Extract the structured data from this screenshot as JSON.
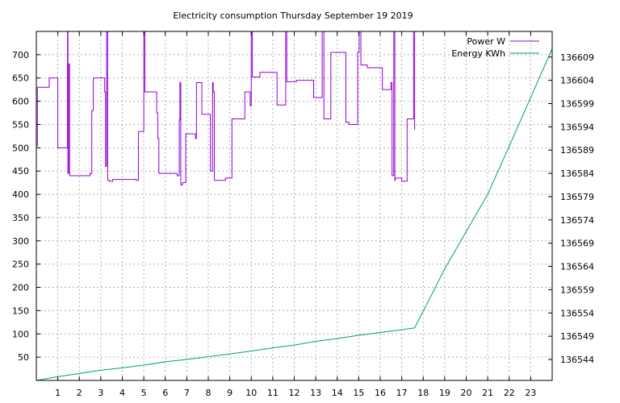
{
  "chart_data": {
    "type": "line",
    "title": "Electricity consumption Thursday September 19 2019",
    "grid": true,
    "legend_position": "top-right",
    "x": {
      "range": [
        0,
        24
      ],
      "ticks": [
        1,
        2,
        3,
        4,
        5,
        6,
        7,
        8,
        9,
        10,
        11,
        12,
        13,
        14,
        15,
        16,
        17,
        18,
        19,
        20,
        21,
        22,
        23
      ]
    },
    "y_left": {
      "range": [
        0,
        750
      ],
      "ticks": [
        50,
        100,
        150,
        200,
        250,
        300,
        350,
        400,
        450,
        500,
        550,
        600,
        650,
        700
      ]
    },
    "y_right": {
      "range": [
        136539.5,
        136614.5
      ],
      "ticks": [
        136544,
        136549,
        136554,
        136559,
        136564,
        136569,
        136574,
        136579,
        136584,
        136589,
        136594,
        136599,
        136604,
        136609
      ]
    },
    "series": [
      {
        "name": "Power W",
        "color": "#9400d3",
        "axis": "left",
        "step": true,
        "points": [
          [
            0,
            505
          ],
          [
            0.05,
            630
          ],
          [
            0.6,
            650
          ],
          [
            1.0,
            500
          ],
          [
            1.45,
            760
          ],
          [
            1.47,
            445
          ],
          [
            1.5,
            680
          ],
          [
            1.55,
            440
          ],
          [
            2.5,
            445
          ],
          [
            2.58,
            580
          ],
          [
            2.65,
            650
          ],
          [
            3.18,
            620
          ],
          [
            3.22,
            460
          ],
          [
            3.27,
            760
          ],
          [
            3.32,
            430
          ],
          [
            3.4,
            428
          ],
          [
            3.55,
            432
          ],
          [
            4.65,
            430
          ],
          [
            4.75,
            535
          ],
          [
            5.0,
            760
          ],
          [
            5.05,
            620
          ],
          [
            5.6,
            575
          ],
          [
            5.65,
            520
          ],
          [
            5.7,
            445
          ],
          [
            6.55,
            440
          ],
          [
            6.65,
            560
          ],
          [
            6.68,
            640
          ],
          [
            6.72,
            420
          ],
          [
            6.8,
            425
          ],
          [
            6.95,
            530
          ],
          [
            7.4,
            520
          ],
          [
            7.45,
            640
          ],
          [
            7.7,
            572
          ],
          [
            8.1,
            450
          ],
          [
            8.2,
            640
          ],
          [
            8.23,
            620
          ],
          [
            8.28,
            430
          ],
          [
            8.8,
            435
          ],
          [
            9.1,
            562
          ],
          [
            9.7,
            620
          ],
          [
            9.95,
            590
          ],
          [
            10.0,
            760
          ],
          [
            10.05,
            652
          ],
          [
            10.4,
            662
          ],
          [
            11.2,
            592
          ],
          [
            11.6,
            760
          ],
          [
            11.65,
            642
          ],
          [
            12.1,
            645
          ],
          [
            12.9,
            608
          ],
          [
            13.3,
            760
          ],
          [
            13.38,
            562
          ],
          [
            13.7,
            705
          ],
          [
            14.4,
            555
          ],
          [
            14.55,
            550
          ],
          [
            14.95,
            705
          ],
          [
            15.02,
            760
          ],
          [
            15.1,
            678
          ],
          [
            15.4,
            672
          ],
          [
            16.1,
            625
          ],
          [
            16.5,
            640
          ],
          [
            16.55,
            440
          ],
          [
            16.63,
            760
          ],
          [
            16.68,
            430
          ],
          [
            16.7,
            435
          ],
          [
            17.0,
            428
          ],
          [
            17.25,
            562
          ],
          [
            17.55,
            760
          ],
          [
            17.6,
            540
          ]
        ]
      },
      {
        "name": "Energy KWh",
        "color": "#009e73",
        "axis": "right",
        "step": false,
        "points": [
          [
            0,
            136539.5
          ],
          [
            1,
            136540.3
          ],
          [
            2,
            136541.0
          ],
          [
            3,
            136541.7
          ],
          [
            4,
            136542.2
          ],
          [
            5,
            136542.8
          ],
          [
            6,
            136543.5
          ],
          [
            7,
            136544.0
          ],
          [
            8,
            136544.6
          ],
          [
            9,
            136545.2
          ],
          [
            10,
            136545.8
          ],
          [
            11,
            136546.5
          ],
          [
            12,
            136547.1
          ],
          [
            13,
            136547.9
          ],
          [
            14,
            136548.5
          ],
          [
            15,
            136549.2
          ],
          [
            16,
            136549.8
          ],
          [
            17,
            136550.4
          ],
          [
            17.6,
            136550.8
          ],
          [
            18.4,
            136558.0
          ],
          [
            19,
            136563.5
          ],
          [
            20,
            136571.5
          ],
          [
            21,
            136579.5
          ],
          [
            22,
            136589.8
          ],
          [
            23,
            136600.3
          ],
          [
            24,
            136610.8
          ]
        ]
      }
    ]
  }
}
